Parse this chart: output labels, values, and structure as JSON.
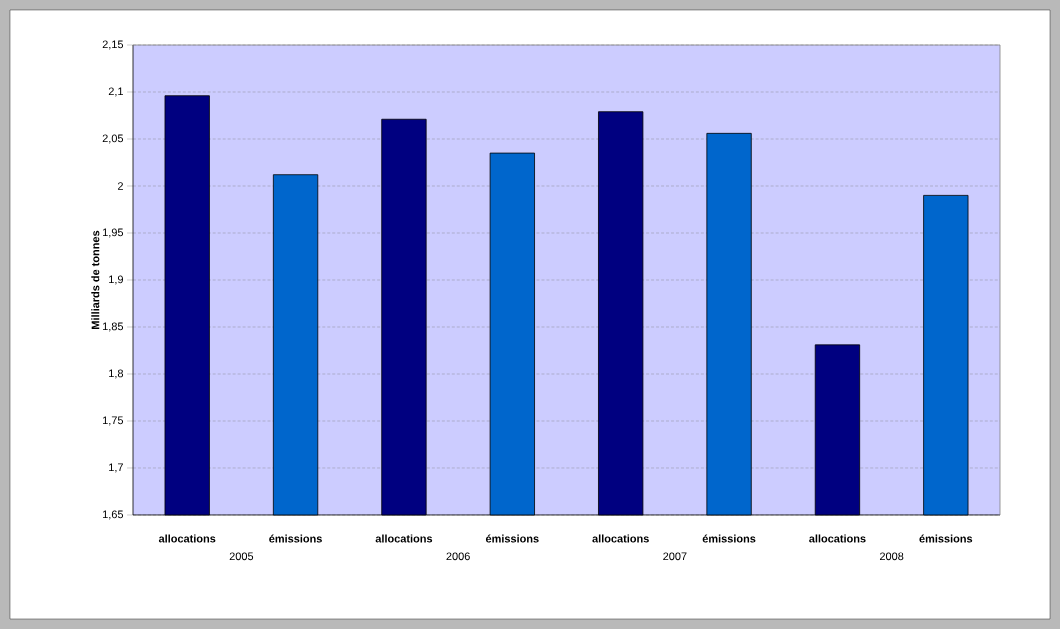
{
  "chart_data": {
    "type": "bar",
    "ylabel": "Milliards de tonnes",
    "categories": [
      "allocations",
      "émissions",
      "allocations",
      "émissions",
      "allocations",
      "émissions",
      "allocations",
      "émissions"
    ],
    "values": [
      2.096,
      2.012,
      2.071,
      2.035,
      2.079,
      2.056,
      1.831,
      1.99
    ],
    "colors": [
      "#000080",
      "#0066cc",
      "#000080",
      "#0066cc",
      "#000080",
      "#0066cc",
      "#000080",
      "#0066cc"
    ],
    "ylim": [
      1.65,
      2.15
    ],
    "yticks": [
      {
        "value": 1.65,
        "label": "1,65"
      },
      {
        "value": 1.7,
        "label": "1,7"
      },
      {
        "value": 1.75,
        "label": "1,75"
      },
      {
        "value": 1.8,
        "label": "1,8"
      },
      {
        "value": 1.85,
        "label": "1,85"
      },
      {
        "value": 1.9,
        "label": "1,9"
      },
      {
        "value": 1.95,
        "label": "1,95"
      },
      {
        "value": 2,
        "label": "2"
      },
      {
        "value": 2.05,
        "label": "2,05"
      },
      {
        "value": 2.1,
        "label": "2,1"
      },
      {
        "value": 2.15,
        "label": "2,15"
      }
    ],
    "grid": "y",
    "annotations": [
      "2005",
      "2006",
      "2007",
      "2008"
    ]
  }
}
